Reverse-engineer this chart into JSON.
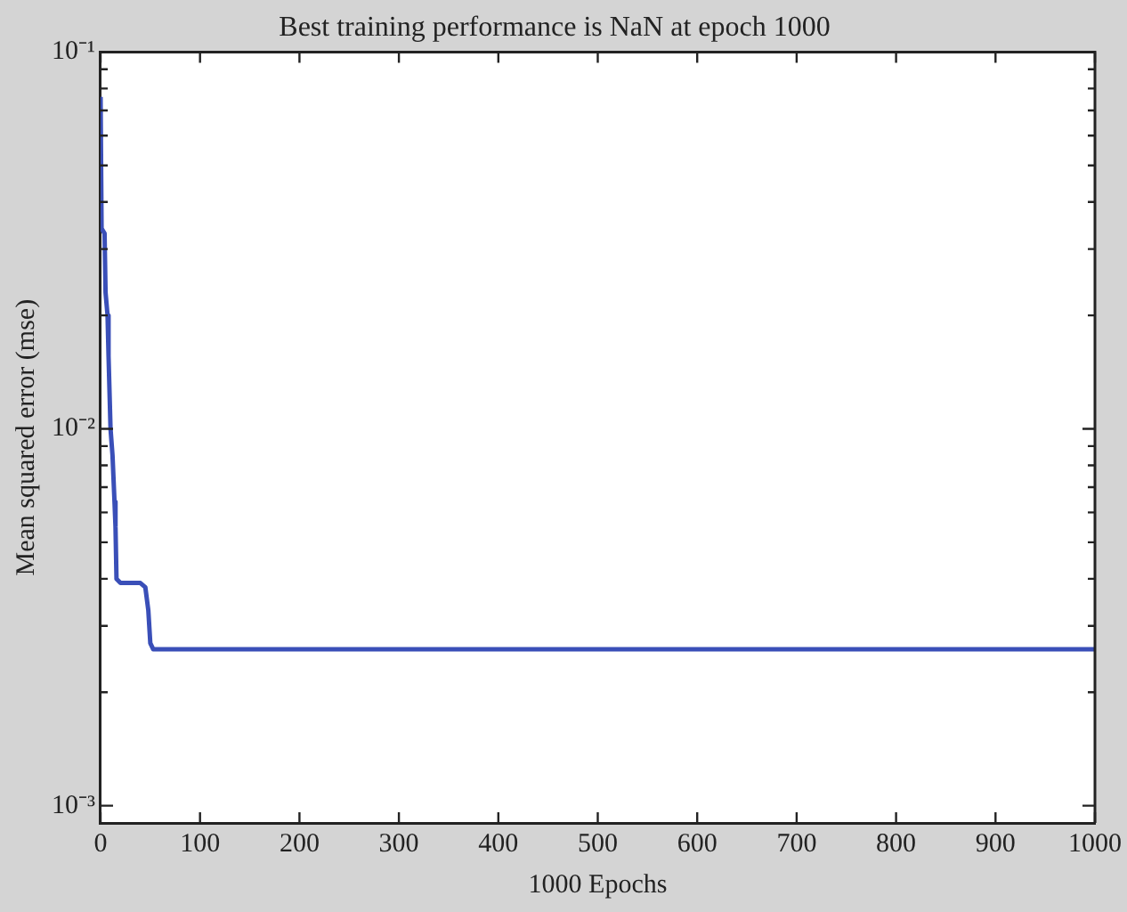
{
  "chart_data": {
    "type": "line",
    "title": "Best training performance is NaN at epoch 1000",
    "xlabel": "1000 Epochs",
    "ylabel": "Mean squared error (mse)",
    "x": [
      0,
      1,
      4,
      5,
      7,
      8,
      10,
      12,
      14,
      15,
      16,
      20,
      30,
      40,
      45,
      48,
      50,
      53,
      100,
      200,
      300,
      400,
      500,
      600,
      700,
      800,
      900,
      1000
    ],
    "series": [
      {
        "color": "#3a4fb8",
        "values": [
          0.076,
          0.034,
          0.033,
          0.023,
          0.02,
          0.0156,
          0.01,
          0.0085,
          0.0064,
          0.0055,
          0.004,
          0.0039,
          0.0039,
          0.0039,
          0.0038,
          0.0033,
          0.0027,
          0.0026,
          0.0026,
          0.0026,
          0.0026,
          0.0026,
          0.0026,
          0.0026,
          0.0026,
          0.0026,
          0.0026,
          0.0026
        ]
      }
    ],
    "log": "y",
    "xlim": [
      0,
      1000
    ],
    "xticks": [
      0,
      100,
      200,
      300,
      400,
      500,
      600,
      700,
      800,
      900,
      1000
    ],
    "ylim": [
      0.0009,
      0.1
    ],
    "yticks": [
      {
        "value": 0.001,
        "label": "10⁻³"
      },
      {
        "value": 0.002,
        "label": null
      },
      {
        "value": 0.003,
        "label": null
      },
      {
        "value": 0.004,
        "label": null
      },
      {
        "value": 0.005,
        "label": null
      },
      {
        "value": 0.006,
        "label": null
      },
      {
        "value": 0.007,
        "label": null
      },
      {
        "value": 0.008,
        "label": null
      },
      {
        "value": 0.009,
        "label": null
      },
      {
        "value": 0.01,
        "label": "10⁻²"
      },
      {
        "value": 0.02,
        "label": null
      },
      {
        "value": 0.03,
        "label": null
      },
      {
        "value": 0.04,
        "label": null
      },
      {
        "value": 0.05,
        "label": null
      },
      {
        "value": 0.06,
        "label": null
      },
      {
        "value": 0.07,
        "label": null
      },
      {
        "value": 0.08,
        "label": null
      },
      {
        "value": 0.09,
        "label": null
      },
      {
        "value": 0.1,
        "label": "10⁻¹"
      }
    ],
    "grid": false,
    "legend": false,
    "marker": "none",
    "line_style": "solid"
  }
}
